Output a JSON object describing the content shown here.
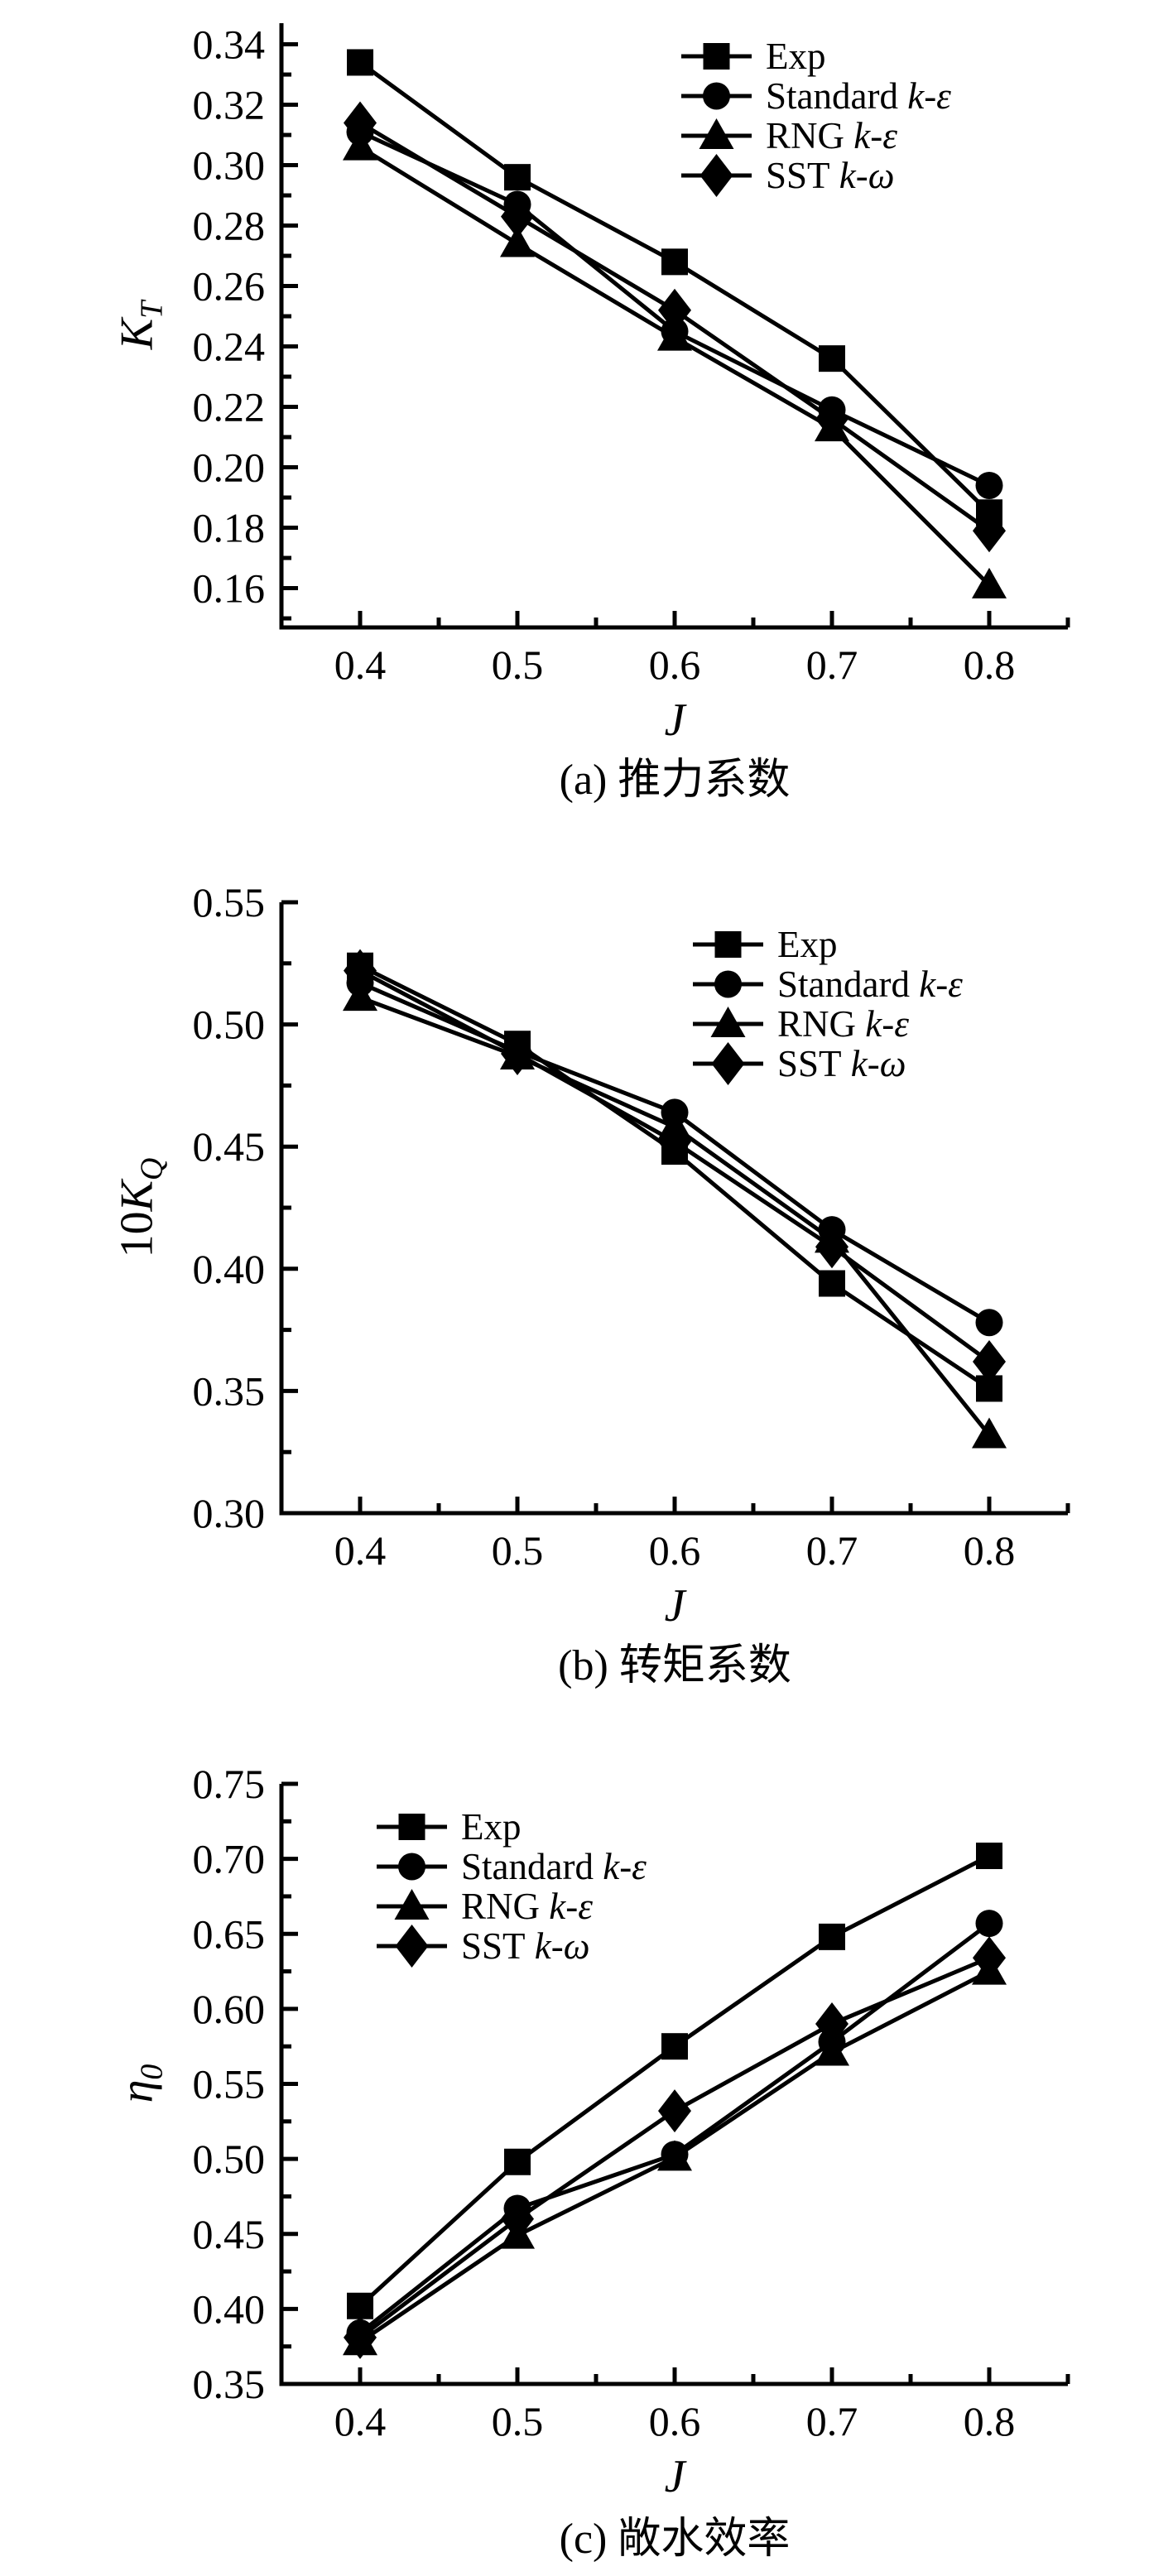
{
  "page": {
    "background": "#ffffff",
    "ink": "#000000"
  },
  "chart_data": [
    {
      "id": "a",
      "type": "line",
      "title": "(a) 推力系数",
      "xlabel": "J",
      "ylabel": {
        "prefix": "",
        "main": "K",
        "sub": "T"
      },
      "x": [
        0.4,
        0.5,
        0.6,
        0.7,
        0.8
      ],
      "xlim": [
        0.35,
        0.85
      ],
      "ylim": [
        0.147,
        0.347
      ],
      "xticks": [
        0.4,
        0.5,
        0.6,
        0.7,
        0.8
      ],
      "yticks": [
        0.16,
        0.18,
        0.2,
        0.22,
        0.24,
        0.26,
        0.28,
        0.3,
        0.32,
        0.34
      ],
      "x_minor_ticks": [
        0.45,
        0.55,
        0.65,
        0.75,
        0.85
      ],
      "y_minor_ticks": [
        0.15,
        0.17,
        0.19,
        0.21,
        0.23,
        0.25,
        0.27,
        0.29,
        0.31,
        0.33
      ],
      "grid": false,
      "legend": {
        "position": "upper-right"
      },
      "series": [
        {
          "key": "exp",
          "label": "Exp",
          "label_math": "",
          "marker": "square",
          "values": [
            0.334,
            0.296,
            0.268,
            0.236,
            0.185
          ]
        },
        {
          "key": "standard-k-epsilon",
          "label": "Standard",
          "label_math": "k-ε",
          "marker": "circle",
          "values": [
            0.311,
            0.287,
            0.245,
            0.219,
            0.194
          ]
        },
        {
          "key": "rng-k-epsilon",
          "label": "RNG",
          "label_math": "k-ε",
          "marker": "triangle",
          "values": [
            0.306,
            0.274,
            0.243,
            0.213,
            0.161
          ]
        },
        {
          "key": "sst-k-omega",
          "label": "SST",
          "label_math": "k-ω",
          "marker": "diamond",
          "values": [
            0.314,
            0.283,
            0.252,
            0.216,
            0.179
          ]
        }
      ]
    },
    {
      "id": "b",
      "type": "line",
      "title": "(b) 转矩系数",
      "xlabel": "J",
      "ylabel": {
        "prefix": "10",
        "main": "K",
        "sub": "Q"
      },
      "x": [
        0.4,
        0.5,
        0.6,
        0.7,
        0.8
      ],
      "xlim": [
        0.35,
        0.85
      ],
      "ylim": [
        0.3,
        0.55
      ],
      "xticks": [
        0.4,
        0.5,
        0.6,
        0.7,
        0.8
      ],
      "yticks": [
        0.3,
        0.35,
        0.4,
        0.45,
        0.5,
        0.55
      ],
      "x_minor_ticks": [
        0.45,
        0.55,
        0.65,
        0.75,
        0.85
      ],
      "y_minor_ticks": [
        0.325,
        0.375,
        0.425,
        0.475,
        0.525
      ],
      "grid": false,
      "legend": {
        "position": "upper-right"
      },
      "series": [
        {
          "key": "exp",
          "label": "Exp",
          "label_math": "",
          "marker": "square",
          "values": [
            0.524,
            0.492,
            0.448,
            0.394,
            0.351
          ]
        },
        {
          "key": "standard-k-epsilon",
          "label": "Standard",
          "label_math": "k-ε",
          "marker": "circle",
          "values": [
            0.517,
            0.489,
            0.464,
            0.416,
            0.378
          ]
        },
        {
          "key": "rng-k-epsilon",
          "label": "RNG",
          "label_math": "k-ε",
          "marker": "triangle",
          "values": [
            0.511,
            0.487,
            0.458,
            0.412,
            0.332
          ]
        },
        {
          "key": "sst-k-omega",
          "label": "SST",
          "label_math": "k-ω",
          "marker": "diamond",
          "values": [
            0.522,
            0.488,
            0.452,
            0.409,
            0.362
          ]
        }
      ]
    },
    {
      "id": "c",
      "type": "line",
      "title": "(c) 敞水效率",
      "xlabel": "J",
      "ylabel": {
        "prefix": "",
        "main": "η",
        "sub": "0"
      },
      "x": [
        0.4,
        0.5,
        0.6,
        0.7,
        0.8
      ],
      "xlim": [
        0.35,
        0.85
      ],
      "ylim": [
        0.35,
        0.75
      ],
      "xticks": [
        0.4,
        0.5,
        0.6,
        0.7,
        0.8
      ],
      "yticks": [
        0.35,
        0.4,
        0.45,
        0.5,
        0.55,
        0.6,
        0.65,
        0.7,
        0.75
      ],
      "x_minor_ticks": [
        0.45,
        0.55,
        0.65,
        0.75,
        0.85
      ],
      "y_minor_ticks": [
        0.375,
        0.425,
        0.475,
        0.525,
        0.575,
        0.625,
        0.675,
        0.725
      ],
      "grid": false,
      "legend": {
        "position": "upper-left"
      },
      "series": [
        {
          "key": "exp",
          "label": "Exp",
          "label_math": "",
          "marker": "square",
          "values": [
            0.402,
            0.498,
            0.575,
            0.648,
            0.702
          ]
        },
        {
          "key": "standard-k-epsilon",
          "label": "Standard",
          "label_math": "k-ε",
          "marker": "circle",
          "values": [
            0.384,
            0.467,
            0.503,
            0.578,
            0.657
          ]
        },
        {
          "key": "rng-k-epsilon",
          "label": "RNG",
          "label_math": "k-ε",
          "marker": "triangle",
          "values": [
            0.378,
            0.449,
            0.501,
            0.571,
            0.625
          ]
        },
        {
          "key": "sst-k-omega",
          "label": "SST",
          "label_math": "k-ω",
          "marker": "diamond",
          "values": [
            0.381,
            0.46,
            0.532,
            0.59,
            0.634
          ]
        }
      ]
    }
  ]
}
